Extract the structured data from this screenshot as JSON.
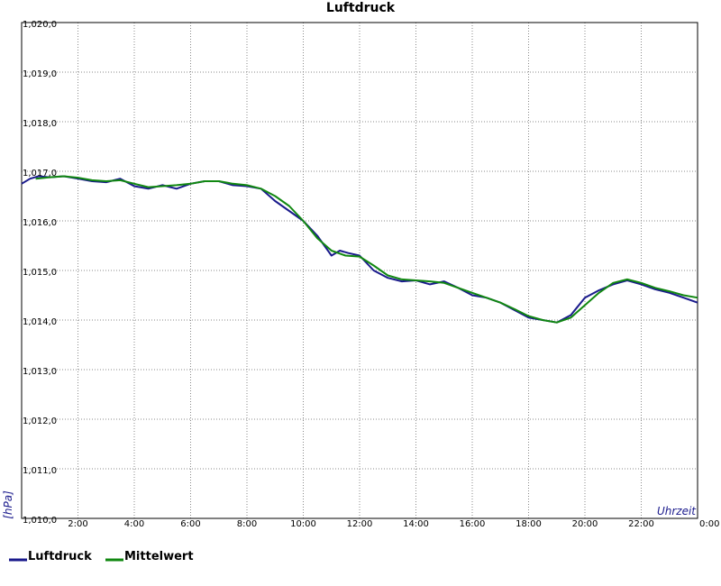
{
  "chart_data": {
    "type": "line",
    "title": "Luftdruck",
    "xlabel": "Uhrzeit",
    "ylabel": "[hPa]",
    "xlim": [
      0,
      24
    ],
    "ylim": [
      1010.0,
      1020.0
    ],
    "grid": true,
    "legend_position": "bottom-left",
    "x_ticks": [
      "2:00",
      "4:00",
      "6:00",
      "8:00",
      "10:00",
      "12:00",
      "14:00",
      "16:00",
      "18:00",
      "20:00",
      "22:00",
      "0:00"
    ],
    "y_ticks": [
      "1,010,0",
      "1,011,0",
      "1,012,0",
      "1,013,0",
      "1,014,0",
      "1,015,0",
      "1,016,0",
      "1,017,0",
      "1,018,0",
      "1,019,0",
      "1,020,0"
    ],
    "series": [
      {
        "name": "Luftdruck",
        "color": "#1a1a8c",
        "x": [
          0,
          0.3,
          0.6,
          1.0,
          1.5,
          2.0,
          2.5,
          3.0,
          3.5,
          4.0,
          4.5,
          5.0,
          5.5,
          6.0,
          6.5,
          7.0,
          7.5,
          8.0,
          8.5,
          9.0,
          9.5,
          10.0,
          10.5,
          11.0,
          11.3,
          11.6,
          12.0,
          12.5,
          13.0,
          13.5,
          14.0,
          14.5,
          15.0,
          15.5,
          16.0,
          16.5,
          17.0,
          17.5,
          18.0,
          18.5,
          19.0,
          19.5,
          20.0,
          20.5,
          21.0,
          21.5,
          22.0,
          22.5,
          23.0,
          23.5,
          24.0
        ],
        "y": [
          1016.75,
          1016.85,
          1016.9,
          1016.88,
          1016.9,
          1016.85,
          1016.8,
          1016.78,
          1016.85,
          1016.7,
          1016.65,
          1016.72,
          1016.65,
          1016.75,
          1016.8,
          1016.8,
          1016.72,
          1016.7,
          1016.65,
          1016.4,
          1016.2,
          1016.0,
          1015.7,
          1015.3,
          1015.4,
          1015.35,
          1015.3,
          1015.0,
          1014.85,
          1014.78,
          1014.8,
          1014.72,
          1014.78,
          1014.65,
          1014.5,
          1014.45,
          1014.35,
          1014.2,
          1014.05,
          1014.0,
          1013.95,
          1014.1,
          1014.45,
          1014.6,
          1014.72,
          1014.8,
          1014.72,
          1014.62,
          1014.55,
          1014.45,
          1014.35
        ]
      },
      {
        "name": "Mittelwert",
        "color": "#118811",
        "x": [
          0.5,
          1.0,
          1.5,
          2.0,
          2.5,
          3.0,
          3.5,
          4.0,
          4.5,
          5.0,
          5.5,
          6.0,
          6.5,
          7.0,
          7.5,
          8.0,
          8.5,
          9.0,
          9.5,
          10.0,
          10.5,
          11.0,
          11.5,
          12.0,
          12.5,
          13.0,
          13.5,
          14.0,
          14.5,
          15.0,
          15.5,
          16.0,
          16.5,
          17.0,
          17.5,
          18.0,
          18.5,
          19.0,
          19.5,
          20.0,
          20.5,
          21.0,
          21.5,
          22.0,
          22.5,
          23.0,
          23.5,
          24.0
        ],
        "y": [
          1016.85,
          1016.88,
          1016.9,
          1016.87,
          1016.82,
          1016.8,
          1016.82,
          1016.75,
          1016.68,
          1016.7,
          1016.72,
          1016.75,
          1016.8,
          1016.8,
          1016.75,
          1016.72,
          1016.65,
          1016.5,
          1016.3,
          1016.0,
          1015.65,
          1015.4,
          1015.3,
          1015.28,
          1015.1,
          1014.9,
          1014.82,
          1014.8,
          1014.78,
          1014.75,
          1014.65,
          1014.55,
          1014.45,
          1014.35,
          1014.22,
          1014.08,
          1014.0,
          1013.95,
          1014.05,
          1014.3,
          1014.55,
          1014.75,
          1014.82,
          1014.75,
          1014.65,
          1014.58,
          1014.5,
          1014.45
        ]
      }
    ]
  }
}
